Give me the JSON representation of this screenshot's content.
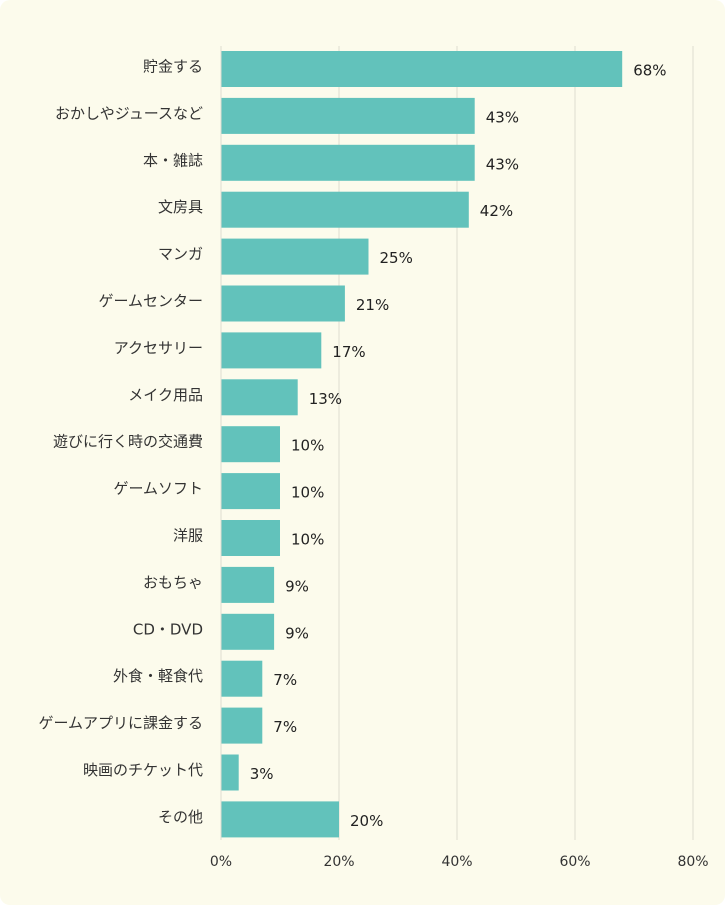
{
  "chart_data": {
    "type": "bar",
    "orientation": "horizontal",
    "categories": [
      "貯金する",
      "おかしやジュースなど",
      "本・雑誌",
      "文房具",
      "マンガ",
      "ゲームセンター",
      "アクセサリー",
      "メイク用品",
      "遊びに行く時の交通費",
      "ゲームソフト",
      "洋服",
      "おもちゃ",
      "CD・DVD",
      "外食・軽食代",
      "ゲームアプリに課金する",
      "映画のチケット代",
      "その他"
    ],
    "values": [
      68,
      43,
      43,
      42,
      25,
      21,
      17,
      13,
      10,
      10,
      10,
      9,
      9,
      7,
      7,
      3,
      20
    ],
    "xlim": [
      0,
      80
    ],
    "x_ticks": [
      0,
      20,
      40,
      60,
      80
    ],
    "tick_suffix": "%",
    "value_suffix": "%",
    "grid": "vertical",
    "colors": {
      "bar": "#62c2bb",
      "background": "#fcfbec",
      "grid": "#dedcd0"
    }
  }
}
